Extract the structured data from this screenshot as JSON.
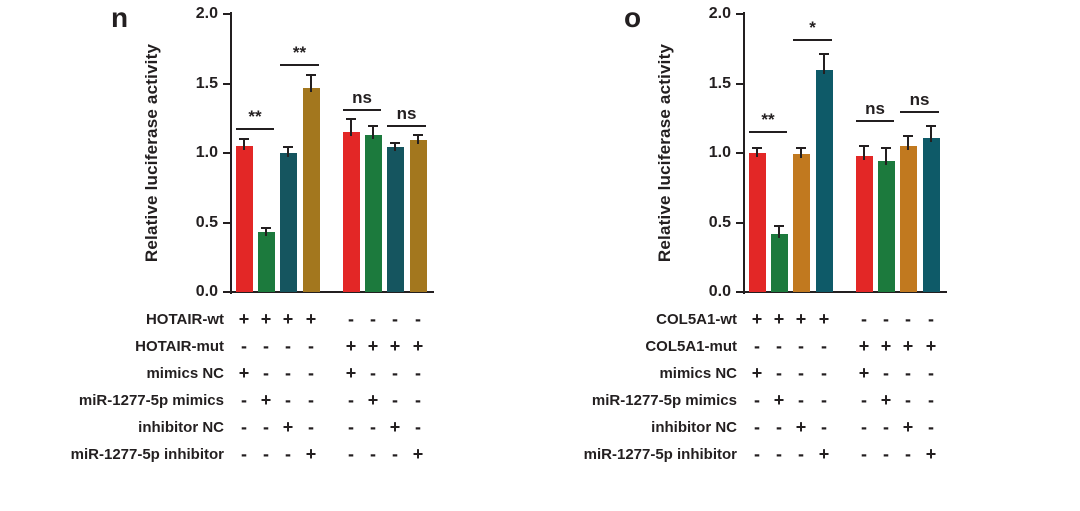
{
  "chart_data": [
    {
      "type": "bar",
      "panel_label": "n",
      "ylabel": "Relative luciferase activity",
      "ylim": [
        0,
        2.0
      ],
      "yticks": [
        "0.0",
        "0.5",
        "1.0",
        "1.5",
        "2.0"
      ],
      "values": [
        1.05,
        0.43,
        1.0,
        1.47,
        1.15,
        1.13,
        1.04,
        1.09
      ],
      "errors": [
        0.06,
        0.04,
        0.05,
        0.1,
        0.1,
        0.07,
        0.04,
        0.05
      ],
      "bar_colors": [
        "#e32726",
        "#1c7a3d",
        "#15555f",
        "#a3771e",
        "#e32726",
        "#1c7a3d",
        "#15555f",
        "#a3771e"
      ],
      "significance": [
        {
          "bars": [
            0,
            1
          ],
          "label": "**",
          "y": 1.18
        },
        {
          "bars": [
            2,
            3
          ],
          "label": "**",
          "y": 1.64
        },
        {
          "bars": [
            4,
            5
          ],
          "label": "ns",
          "y": 1.32
        },
        {
          "bars": [
            6,
            7
          ],
          "label": "ns",
          "y": 1.2
        }
      ],
      "condition_rows": [
        {
          "label": "HOTAIR-wt",
          "signs": [
            "+",
            "+",
            "+",
            "+",
            "-",
            "-",
            "-",
            "-"
          ]
        },
        {
          "label": "HOTAIR-mut",
          "signs": [
            "-",
            "-",
            "-",
            "-",
            "+",
            "+",
            "+",
            "+"
          ]
        },
        {
          "label": "mimics NC",
          "signs": [
            "+",
            "-",
            "-",
            "-",
            "+",
            "-",
            "-",
            "-"
          ]
        },
        {
          "label": "miR-1277-5p mimics",
          "signs": [
            "-",
            "+",
            "-",
            "-",
            "-",
            "+",
            "-",
            "-"
          ]
        },
        {
          "label": "inhibitor NC",
          "signs": [
            "-",
            "-",
            "+",
            "-",
            "-",
            "-",
            "+",
            "-"
          ]
        },
        {
          "label": "miR-1277-5p inhibitor",
          "signs": [
            "-",
            "-",
            "-",
            "+",
            "-",
            "-",
            "-",
            "+"
          ]
        }
      ]
    },
    {
      "type": "bar",
      "panel_label": "o",
      "ylabel": "Relative luciferase activity",
      "ylim": [
        0,
        2.0
      ],
      "yticks": [
        "0.0",
        "0.5",
        "1.0",
        "1.5",
        "2.0"
      ],
      "values": [
        1.0,
        0.42,
        0.99,
        1.6,
        0.98,
        0.94,
        1.05,
        1.11
      ],
      "errors": [
        0.04,
        0.06,
        0.05,
        0.12,
        0.08,
        0.1,
        0.08,
        0.09
      ],
      "bar_colors": [
        "#e32726",
        "#1c7a3d",
        "#c1791f",
        "#0e5a68",
        "#e32726",
        "#1c7a3d",
        "#c1791f",
        "#0e5a68"
      ],
      "significance": [
        {
          "bars": [
            0,
            1
          ],
          "label": "**",
          "y": 1.16
        },
        {
          "bars": [
            2,
            3
          ],
          "label": "*",
          "y": 1.82
        },
        {
          "bars": [
            4,
            5
          ],
          "label": "ns",
          "y": 1.24
        },
        {
          "bars": [
            6,
            7
          ],
          "label": "ns",
          "y": 1.3
        }
      ],
      "condition_rows": [
        {
          "label": "COL5A1-wt",
          "signs": [
            "+",
            "+",
            "+",
            "+",
            "-",
            "-",
            "-",
            "-"
          ]
        },
        {
          "label": "COL5A1-mut",
          "signs": [
            "-",
            "-",
            "-",
            "-",
            "+",
            "+",
            "+",
            "+"
          ]
        },
        {
          "label": "mimics NC",
          "signs": [
            "+",
            "-",
            "-",
            "-",
            "+",
            "-",
            "-",
            "-"
          ]
        },
        {
          "label": "miR-1277-5p mimics",
          "signs": [
            "-",
            "+",
            "-",
            "-",
            "-",
            "+",
            "-",
            "-"
          ]
        },
        {
          "label": "inhibitor NC",
          "signs": [
            "-",
            "-",
            "+",
            "-",
            "-",
            "-",
            "+",
            "-"
          ]
        },
        {
          "label": "miR-1277-5p inhibitor",
          "signs": [
            "-",
            "-",
            "-",
            "+",
            "-",
            "-",
            "-",
            "+"
          ]
        }
      ]
    }
  ]
}
